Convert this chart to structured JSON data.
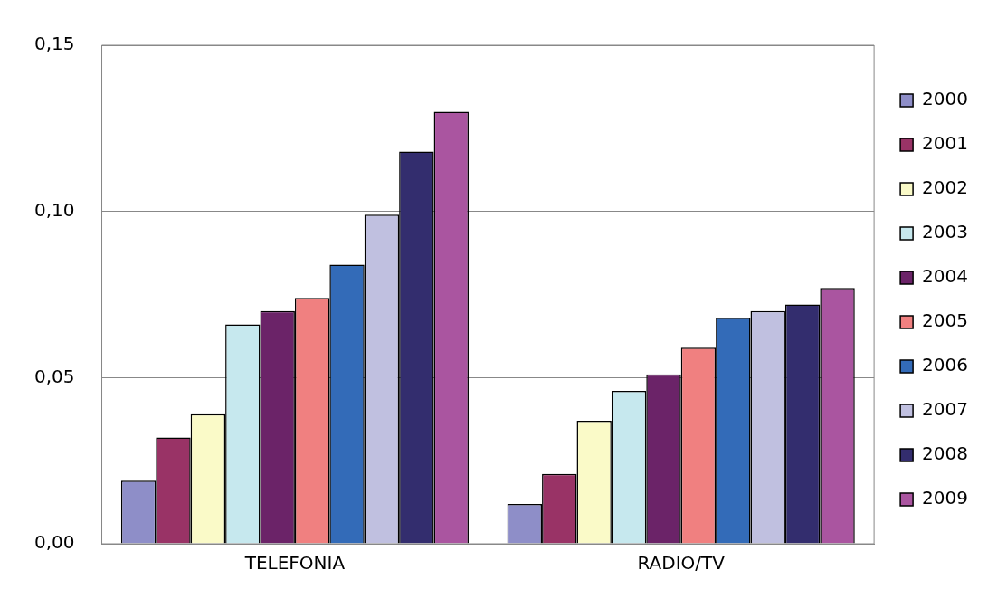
{
  "chart_data": {
    "type": "bar",
    "categories": [
      "TELEFONIA",
      "RADIO/TV"
    ],
    "series": [
      {
        "name": "2000",
        "color": "#8e8ec8",
        "values": [
          0.019,
          0.012
        ]
      },
      {
        "name": "2001",
        "color": "#993366",
        "values": [
          0.032,
          0.021
        ]
      },
      {
        "name": "2002",
        "color": "#fafac8",
        "values": [
          0.039,
          0.037
        ]
      },
      {
        "name": "2003",
        "color": "#c6e8ee",
        "values": [
          0.066,
          0.046
        ]
      },
      {
        "name": "2004",
        "color": "#6b2368",
        "values": [
          0.07,
          0.051
        ]
      },
      {
        "name": "2005",
        "color": "#f08080",
        "values": [
          0.074,
          0.059
        ]
      },
      {
        "name": "2006",
        "color": "#336bb8",
        "values": [
          0.084,
          0.068
        ]
      },
      {
        "name": "2007",
        "color": "#c0c0e0",
        "values": [
          0.099,
          0.07
        ]
      },
      {
        "name": "2008",
        "color": "#332d6e",
        "values": [
          0.118,
          0.072
        ]
      },
      {
        "name": "2009",
        "color": "#aa55a0",
        "values": [
          0.13,
          0.077
        ]
      }
    ],
    "ylim": [
      0,
      0.15
    ],
    "yticks": [
      {
        "value": 0,
        "label": "0,00"
      },
      {
        "value": 0.05,
        "label": "0,05"
      },
      {
        "value": 0.1,
        "label": "0,10"
      },
      {
        "value": 0.15,
        "label": "0,15"
      }
    ],
    "grid": "y",
    "legend": "right"
  }
}
